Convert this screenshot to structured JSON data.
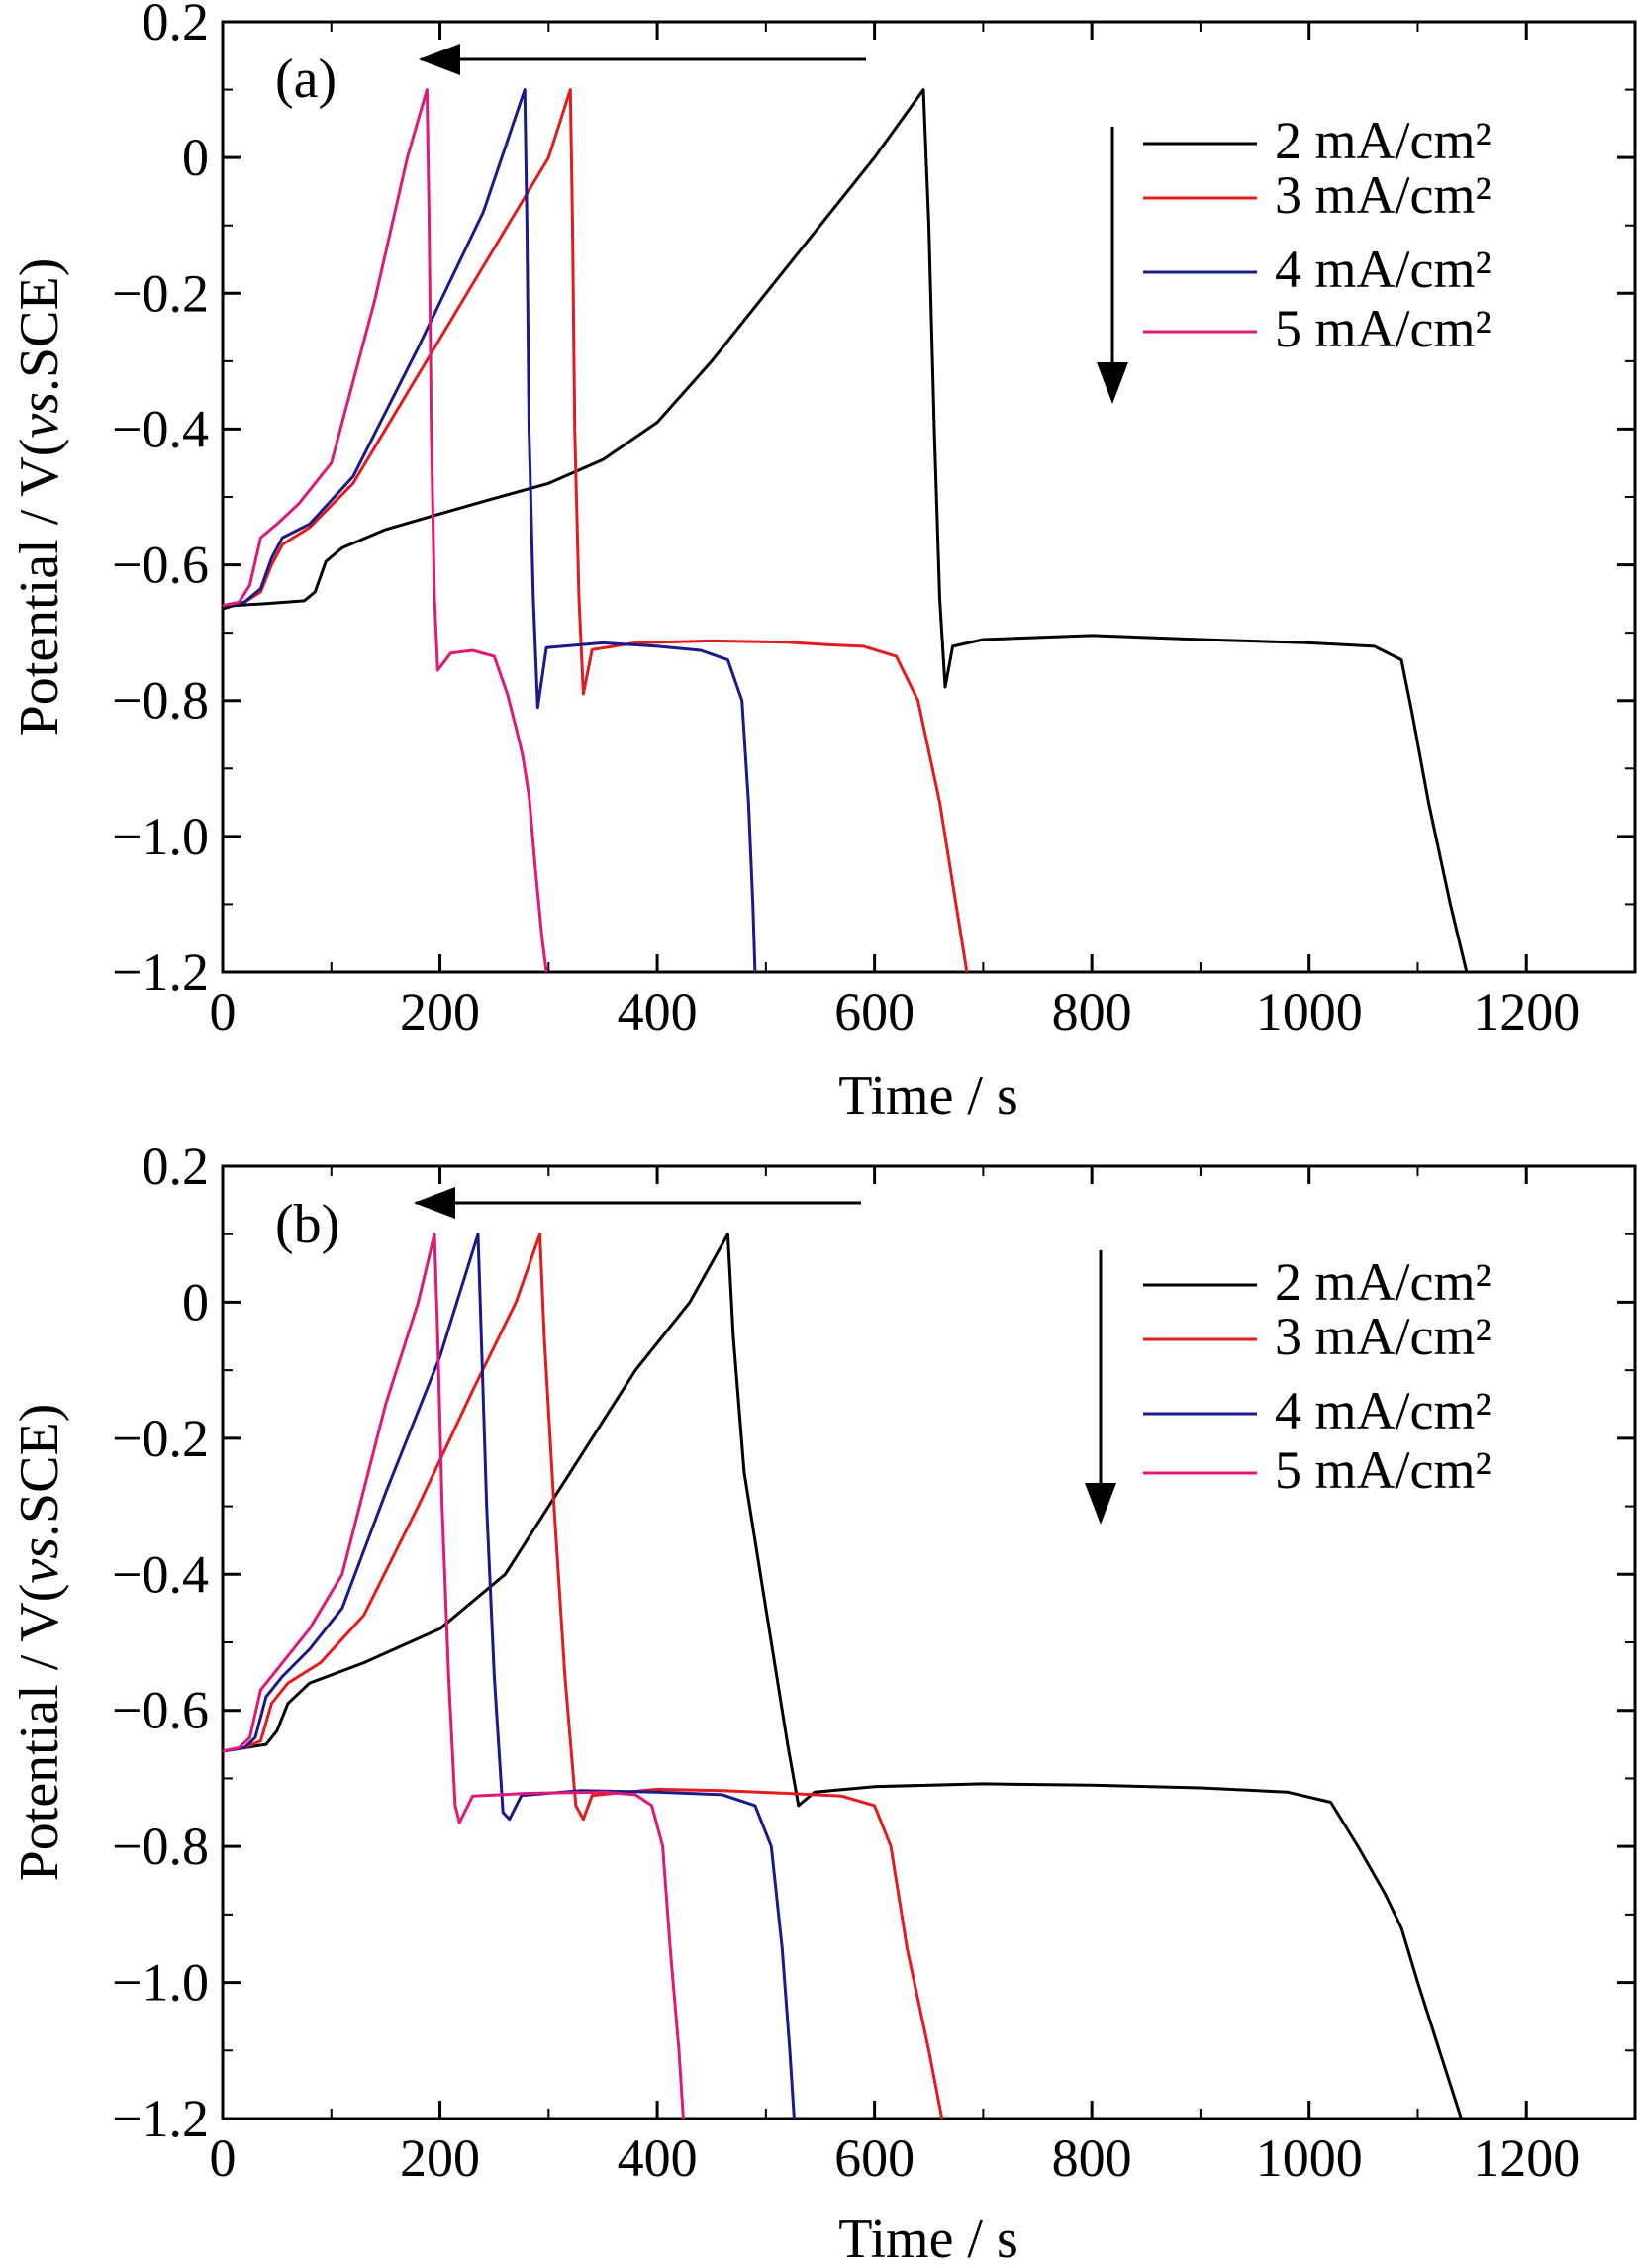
{
  "chart_data": [
    {
      "type": "line",
      "panel_label": "(a)",
      "xlabel": "Time / s",
      "ylabel_prefix": "Potential / V(",
      "ylabel_italic": "vs",
      "ylabel_suffix": ".SCE)",
      "xlim": [
        0,
        1300
      ],
      "ylim": [
        -1.2,
        0.2
      ],
      "xticks": [
        0,
        200,
        400,
        600,
        800,
        1000,
        1200
      ],
      "xtick_labels": [
        "0",
        "200",
        "400",
        "600",
        "800",
        "1000",
        "1200"
      ],
      "yticks": [
        0.2,
        0,
        -0.2,
        -0.4,
        -0.6,
        -0.8,
        -1.0,
        -1.2
      ],
      "ytick_labels": [
        "0.2",
        "0",
        "−0.2",
        "−0.4",
        "−0.6",
        "−0.8",
        "−1.0",
        "−1.2"
      ],
      "series": [
        {
          "name": "2 mA/cm²",
          "color": "#000000",
          "points": [
            [
              0,
              -0.665
            ],
            [
              10,
              -0.66
            ],
            [
              40,
              -0.657
            ],
            [
              75,
              -0.653
            ],
            [
              85,
              -0.64
            ],
            [
              95,
              -0.595
            ],
            [
              110,
              -0.575
            ],
            [
              150,
              -0.548
            ],
            [
              200,
              -0.525
            ],
            [
              250,
              -0.502
            ],
            [
              300,
              -0.48
            ],
            [
              350,
              -0.445
            ],
            [
              400,
              -0.39
            ],
            [
              450,
              -0.3
            ],
            [
              500,
              -0.2
            ],
            [
              550,
              -0.1
            ],
            [
              600,
              0.0
            ],
            [
              645,
              0.1
            ],
            [
              650,
              -0.1
            ],
            [
              655,
              -0.4
            ],
            [
              660,
              -0.65
            ],
            [
              665,
              -0.78
            ],
            [
              672,
              -0.72
            ],
            [
              700,
              -0.71
            ],
            [
              800,
              -0.704
            ],
            [
              900,
              -0.71
            ],
            [
              1000,
              -0.715
            ],
            [
              1060,
              -0.72
            ],
            [
              1085,
              -0.74
            ],
            [
              1095,
              -0.82
            ],
            [
              1110,
              -0.95
            ],
            [
              1130,
              -1.1
            ],
            [
              1145,
              -1.2
            ]
          ]
        },
        {
          "name": "3 mA/cm²",
          "color": "#e41a1c",
          "points": [
            [
              0,
              -0.66
            ],
            [
              20,
              -0.655
            ],
            [
              35,
              -0.64
            ],
            [
              45,
              -0.6
            ],
            [
              55,
              -0.57
            ],
            [
              80,
              -0.545
            ],
            [
              120,
              -0.48
            ],
            [
              180,
              -0.32
            ],
            [
              240,
              -0.16
            ],
            [
              300,
              0.0
            ],
            [
              320,
              0.1
            ],
            [
              322,
              -0.1
            ],
            [
              324,
              -0.4
            ],
            [
              328,
              -0.65
            ],
            [
              332,
              -0.79
            ],
            [
              340,
              -0.725
            ],
            [
              380,
              -0.715
            ],
            [
              450,
              -0.712
            ],
            [
              520,
              -0.714
            ],
            [
              560,
              -0.718
            ],
            [
              590,
              -0.72
            ],
            [
              620,
              -0.735
            ],
            [
              640,
              -0.8
            ],
            [
              660,
              -0.95
            ],
            [
              675,
              -1.1
            ],
            [
              685,
              -1.2
            ]
          ]
        },
        {
          "name": "4 mA/cm²",
          "color": "#1a1a8c",
          "points": [
            [
              0,
              -0.66
            ],
            [
              20,
              -0.655
            ],
            [
              35,
              -0.635
            ],
            [
              45,
              -0.59
            ],
            [
              55,
              -0.56
            ],
            [
              80,
              -0.54
            ],
            [
              120,
              -0.47
            ],
            [
              180,
              -0.28
            ],
            [
              240,
              -0.08
            ],
            [
              278,
              0.1
            ],
            [
              280,
              -0.1
            ],
            [
              282,
              -0.4
            ],
            [
              286,
              -0.65
            ],
            [
              290,
              -0.81
            ],
            [
              298,
              -0.722
            ],
            [
              350,
              -0.715
            ],
            [
              400,
              -0.72
            ],
            [
              440,
              -0.726
            ],
            [
              465,
              -0.74
            ],
            [
              478,
              -0.8
            ],
            [
              484,
              -0.95
            ],
            [
              488,
              -1.1
            ],
            [
              490,
              -1.2
            ]
          ]
        },
        {
          "name": "5 mA/cm²",
          "color": "#e0187a",
          "points": [
            [
              0,
              -0.66
            ],
            [
              15,
              -0.655
            ],
            [
              25,
              -0.63
            ],
            [
              35,
              -0.56
            ],
            [
              50,
              -0.54
            ],
            [
              70,
              -0.51
            ],
            [
              100,
              -0.45
            ],
            [
              140,
              -0.21
            ],
            [
              170,
              0.0
            ],
            [
              188,
              0.1
            ],
            [
              190,
              -0.1
            ],
            [
              192,
              -0.4
            ],
            [
              195,
              -0.65
            ],
            [
              198,
              -0.755
            ],
            [
              210,
              -0.73
            ],
            [
              230,
              -0.726
            ],
            [
              250,
              -0.735
            ],
            [
              262,
              -0.79
            ],
            [
              270,
              -0.84
            ],
            [
              276,
              -0.88
            ],
            [
              282,
              -0.94
            ],
            [
              288,
              -1.05
            ],
            [
              294,
              -1.15
            ],
            [
              298,
              -1.2
            ]
          ]
        }
      ]
    },
    {
      "type": "line",
      "panel_label": "(b)",
      "xlabel": "Time / s",
      "ylabel_prefix": "Potential / V(",
      "ylabel_italic": "vs",
      "ylabel_suffix": ".SCE)",
      "xlim": [
        0,
        1300
      ],
      "ylim": [
        -1.2,
        0.2
      ],
      "xticks": [
        0,
        200,
        400,
        600,
        800,
        1000,
        1200
      ],
      "xtick_labels": [
        "0",
        "200",
        "400",
        "600",
        "800",
        "1000",
        "1200"
      ],
      "yticks": [
        0.2,
        0,
        -0.2,
        -0.4,
        -0.6,
        -0.8,
        -1.0,
        -1.2
      ],
      "ytick_labels": [
        "0.2",
        "0",
        "−0.2",
        "−0.4",
        "−0.6",
        "−0.8",
        "−1.0",
        "−1.2"
      ],
      "series": [
        {
          "name": "2 mA/cm²",
          "color": "#000000",
          "points": [
            [
              0,
              -0.66
            ],
            [
              20,
              -0.655
            ],
            [
              40,
              -0.65
            ],
            [
              50,
              -0.63
            ],
            [
              60,
              -0.59
            ],
            [
              80,
              -0.56
            ],
            [
              130,
              -0.53
            ],
            [
              200,
              -0.48
            ],
            [
              260,
              -0.4
            ],
            [
              320,
              -0.25
            ],
            [
              380,
              -0.1
            ],
            [
              430,
              0.0
            ],
            [
              465,
              0.1
            ],
            [
              470,
              -0.05
            ],
            [
              480,
              -0.25
            ],
            [
              500,
              -0.45
            ],
            [
              520,
              -0.65
            ],
            [
              530,
              -0.74
            ],
            [
              545,
              -0.72
            ],
            [
              600,
              -0.712
            ],
            [
              700,
              -0.708
            ],
            [
              800,
              -0.71
            ],
            [
              900,
              -0.714
            ],
            [
              980,
              -0.72
            ],
            [
              1020,
              -0.735
            ],
            [
              1045,
              -0.8
            ],
            [
              1070,
              -0.87
            ],
            [
              1085,
              -0.92
            ],
            [
              1100,
              -1.0
            ],
            [
              1120,
              -1.1
            ],
            [
              1140,
              -1.2
            ]
          ]
        },
        {
          "name": "3 mA/cm²",
          "color": "#e41a1c",
          "points": [
            [
              0,
              -0.66
            ],
            [
              20,
              -0.655
            ],
            [
              35,
              -0.645
            ],
            [
              45,
              -0.59
            ],
            [
              60,
              -0.56
            ],
            [
              90,
              -0.53
            ],
            [
              130,
              -0.46
            ],
            [
              180,
              -0.3
            ],
            [
              230,
              -0.13
            ],
            [
              270,
              0.0
            ],
            [
              292,
              0.1
            ],
            [
              296,
              -0.05
            ],
            [
              305,
              -0.3
            ],
            [
              315,
              -0.55
            ],
            [
              325,
              -0.74
            ],
            [
              332,
              -0.76
            ],
            [
              340,
              -0.725
            ],
            [
              400,
              -0.716
            ],
            [
              460,
              -0.718
            ],
            [
              520,
              -0.722
            ],
            [
              570,
              -0.726
            ],
            [
              600,
              -0.74
            ],
            [
              615,
              -0.8
            ],
            [
              630,
              -0.95
            ],
            [
              650,
              -1.1
            ],
            [
              662,
              -1.2
            ]
          ]
        },
        {
          "name": "4 mA/cm²",
          "color": "#1a1a8c",
          "points": [
            [
              0,
              -0.66
            ],
            [
              20,
              -0.655
            ],
            [
              30,
              -0.64
            ],
            [
              40,
              -0.58
            ],
            [
              55,
              -0.55
            ],
            [
              80,
              -0.51
            ],
            [
              110,
              -0.45
            ],
            [
              150,
              -0.28
            ],
            [
              200,
              -0.08
            ],
            [
              235,
              0.1
            ],
            [
              238,
              -0.05
            ],
            [
              243,
              -0.3
            ],
            [
              250,
              -0.55
            ],
            [
              258,
              -0.75
            ],
            [
              264,
              -0.76
            ],
            [
              275,
              -0.725
            ],
            [
              330,
              -0.718
            ],
            [
              400,
              -0.72
            ],
            [
              460,
              -0.724
            ],
            [
              490,
              -0.74
            ],
            [
              505,
              -0.8
            ],
            [
              515,
              -0.95
            ],
            [
              522,
              -1.1
            ],
            [
              526,
              -1.2
            ]
          ]
        },
        {
          "name": "5 mA/cm²",
          "color": "#e0187a",
          "points": [
            [
              0,
              -0.66
            ],
            [
              15,
              -0.655
            ],
            [
              25,
              -0.64
            ],
            [
              35,
              -0.57
            ],
            [
              50,
              -0.54
            ],
            [
              80,
              -0.48
            ],
            [
              110,
              -0.4
            ],
            [
              150,
              -0.15
            ],
            [
              180,
              0.0
            ],
            [
              195,
              0.1
            ],
            [
              198,
              -0.05
            ],
            [
              202,
              -0.3
            ],
            [
              208,
              -0.55
            ],
            [
              214,
              -0.74
            ],
            [
              218,
              -0.765
            ],
            [
              230,
              -0.726
            ],
            [
              280,
              -0.722
            ],
            [
              350,
              -0.72
            ],
            [
              380,
              -0.724
            ],
            [
              395,
              -0.74
            ],
            [
              405,
              -0.8
            ],
            [
              412,
              -0.95
            ],
            [
              420,
              -1.1
            ],
            [
              424,
              -1.2
            ]
          ]
        }
      ]
    }
  ],
  "legend_labels": [
    "2 mA/cm²",
    "3 mA/cm²",
    "4 mA/cm²",
    "5 mA/cm²"
  ],
  "legend_series_colors": [
    "#000000",
    "#e41a1c",
    "#1a1a8c",
    "#e0187a"
  ]
}
